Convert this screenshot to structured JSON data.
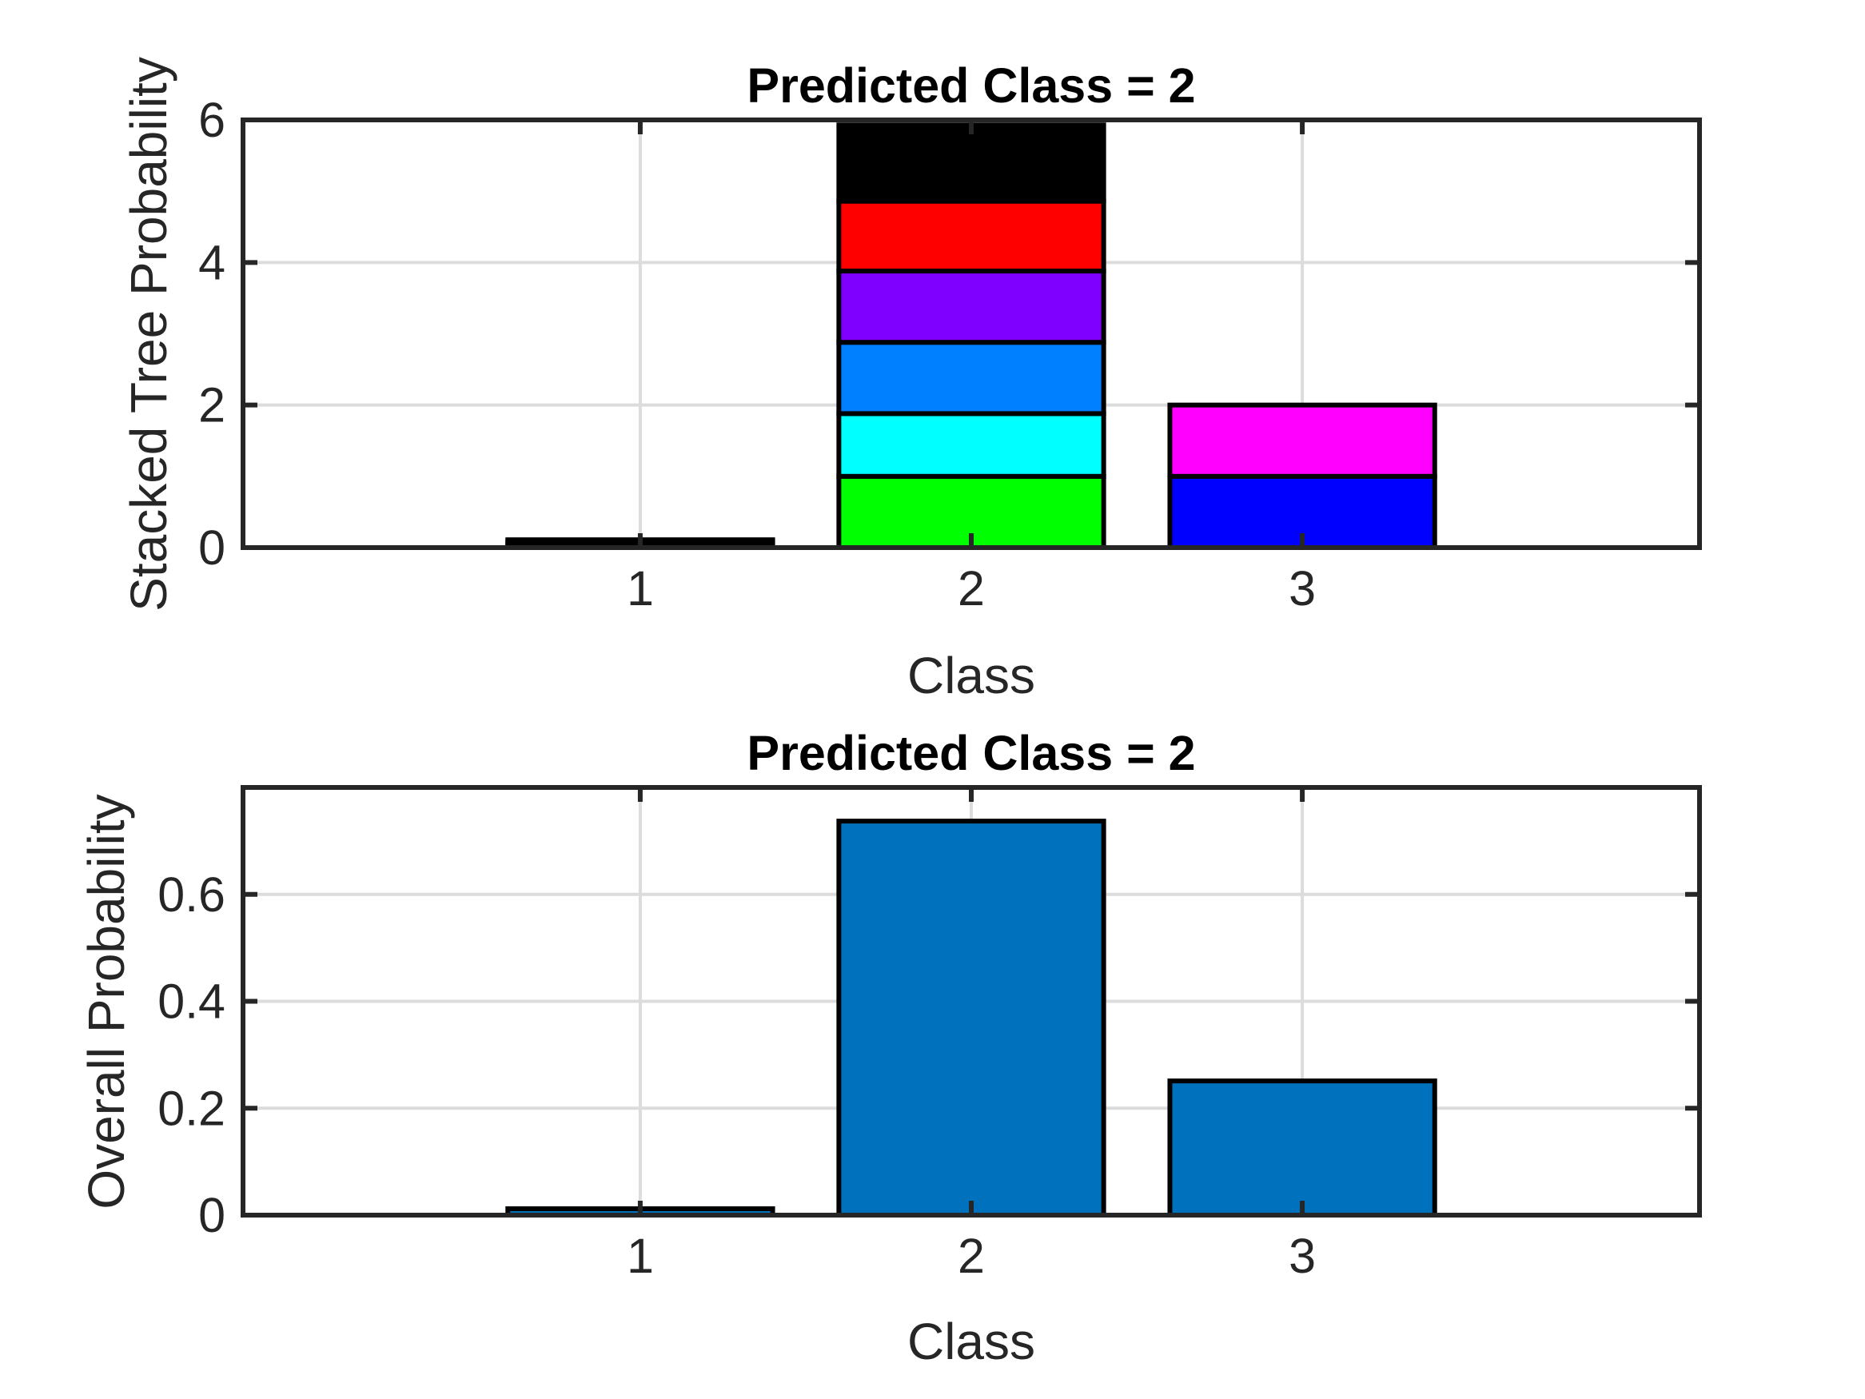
{
  "chart_data": [
    {
      "type": "bar",
      "stacked": true,
      "title": "Predicted Class = 2",
      "xlabel": "Class",
      "ylabel": "Stacked Tree Probability",
      "categories": [
        "1",
        "2",
        "3"
      ],
      "xlim": [
        -0.2,
        4.2
      ],
      "ylim": [
        0,
        6
      ],
      "yticks": [
        "0",
        "2",
        "4",
        "6"
      ],
      "grid": true,
      "series": [
        {
          "color": "#00ff00",
          "values": [
            0.05,
            1.0,
            0.0
          ]
        },
        {
          "color": "#00ffff",
          "values": [
            0.03,
            0.88,
            0.0
          ]
        },
        {
          "color": "#0080ff",
          "values": [
            0.03,
            1.0,
            0.0
          ]
        },
        {
          "color": "#8000ff",
          "values": [
            0.0,
            1.0,
            0.0
          ]
        },
        {
          "color": "#ff0000",
          "values": [
            0.0,
            0.98,
            0.0
          ]
        },
        {
          "color": "#000000",
          "values": [
            0.0,
            1.07,
            0.0
          ]
        },
        {
          "color": "#0000ff",
          "values": [
            0.0,
            0.0,
            1.0
          ]
        },
        {
          "color": "#ff00ff",
          "values": [
            0.0,
            0.0,
            1.0
          ]
        }
      ]
    },
    {
      "type": "bar",
      "title": "Predicted Class = 2",
      "xlabel": "Class",
      "ylabel": "Overall Probability",
      "categories": [
        "1",
        "2",
        "3"
      ],
      "xlim": [
        -0.2,
        4.2
      ],
      "ylim": [
        0,
        0.8
      ],
      "yticks": [
        "0",
        "0.2",
        "0.4",
        "0.6"
      ],
      "grid": true,
      "color": "#0072bd",
      "values": [
        0.012,
        0.737,
        0.251
      ]
    }
  ]
}
